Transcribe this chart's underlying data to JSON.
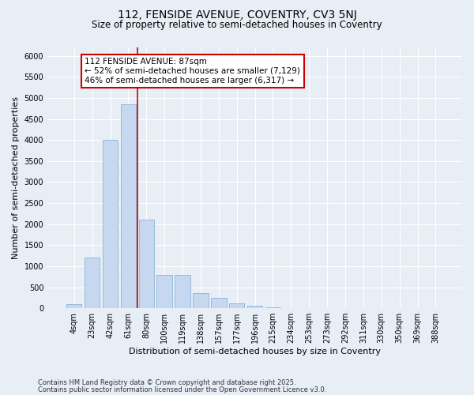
{
  "title1": "112, FENSIDE AVENUE, COVENTRY, CV3 5NJ",
  "title2": "Size of property relative to semi-detached houses in Coventry",
  "xlabel": "Distribution of semi-detached houses by size in Coventry",
  "ylabel": "Number of semi-detached properties",
  "categories": [
    "4sqm",
    "23sqm",
    "42sqm",
    "61sqm",
    "80sqm",
    "100sqm",
    "119sqm",
    "138sqm",
    "157sqm",
    "177sqm",
    "196sqm",
    "215sqm",
    "234sqm",
    "253sqm",
    "273sqm",
    "292sqm",
    "311sqm",
    "330sqm",
    "350sqm",
    "369sqm",
    "388sqm"
  ],
  "values": [
    100,
    1200,
    4000,
    4850,
    2100,
    800,
    800,
    360,
    240,
    120,
    60,
    30,
    10,
    5,
    2,
    1,
    0,
    0,
    0,
    0,
    0
  ],
  "bar_color": "#c5d8f0",
  "bar_edge_color": "#8ab4d8",
  "background_color": "#e8eef5",
  "grid_color": "#ffffff",
  "vline_color": "#cc0000",
  "annotation_line1": "112 FENSIDE AVENUE: 87sqm",
  "annotation_line2": "← 52% of semi-detached houses are smaller (7,129)",
  "annotation_line3": "46% of semi-detached houses are larger (6,317) →",
  "annotation_box_color": "#ffffff",
  "annotation_box_edge": "#cc0000",
  "ylim": [
    0,
    6200
  ],
  "yticks": [
    0,
    500,
    1000,
    1500,
    2000,
    2500,
    3000,
    3500,
    4000,
    4500,
    5000,
    5500,
    6000
  ],
  "footer1": "Contains HM Land Registry data © Crown copyright and database right 2025.",
  "footer2": "Contains public sector information licensed under the Open Government Licence v3.0.",
  "title1_fontsize": 10,
  "title2_fontsize": 8.5,
  "axis_label_fontsize": 8,
  "tick_fontsize": 7,
  "annotation_fontsize": 7.5,
  "footer_fontsize": 6
}
